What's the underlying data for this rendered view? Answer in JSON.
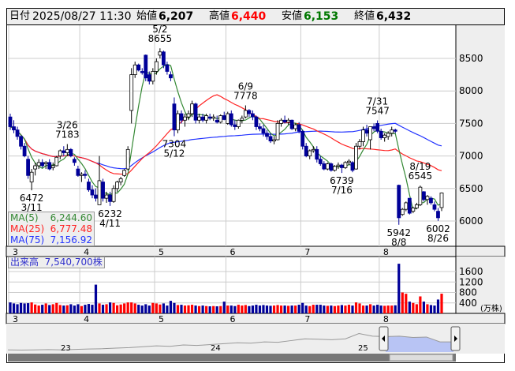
{
  "header": {
    "date_label": "日付",
    "datetime": "2025/08/27 11:30",
    "open_label": "始値",
    "open": "6,207",
    "high_label": "高値",
    "high": "6,440",
    "low_label": "安値",
    "low": "6,153",
    "close_label": "終値",
    "close": "6,432"
  },
  "colors": {
    "up_volume": "#ff0000",
    "down_volume": "#000099",
    "down_candle": "#000099",
    "up_candle": "#ffffff",
    "ma5": "#338833",
    "ma25": "#ff2222",
    "ma75": "#2233ff",
    "high_text": "#ff0000",
    "low_text": "#007700",
    "navigator_fill": "#b8c4f4"
  },
  "ma_legend": [
    {
      "name": "MA(5)",
      "value": "6,244.60"
    },
    {
      "name": "MA(25)",
      "value": "6,777.48"
    },
    {
      "name": "MA(75)",
      "value": "7,156.92"
    }
  ],
  "volume_legend": {
    "label": "出来高",
    "value": "7,540,700株"
  },
  "navigator": {
    "year_labels": [
      "23",
      "24",
      "25"
    ],
    "values": [
      4500,
      4450,
      4500,
      4550,
      4500,
      4600,
      4700,
      4750,
      4900,
      5000,
      5200,
      5400,
      5300,
      5600,
      5500,
      5700,
      5900,
      6100,
      6000,
      6300,
      6200,
      6600,
      7000,
      6900,
      6800,
      7000,
      8200,
      7600,
      7500,
      7600,
      7300,
      7400,
      6300,
      6300
    ]
  },
  "chart_data": {
    "type": "candlestick",
    "price_axis": {
      "ticks": [
        6000,
        6500,
        7000,
        7500,
        8000,
        8500
      ]
    },
    "volume_axis": {
      "ticks": [
        400,
        800,
        1200,
        1600
      ],
      "unit": "(万株)"
    },
    "month_labels": [
      "3",
      "4",
      "5",
      "6",
      "7",
      "8"
    ],
    "annotations": [
      {
        "date": "3/11",
        "value": "6472",
        "pos": "below"
      },
      {
        "date": "3/26",
        "value": "7183",
        "pos": "above"
      },
      {
        "date": "4/11",
        "value": "6232",
        "pos": "below"
      },
      {
        "date": "5/2",
        "value": "8655",
        "pos": "above"
      },
      {
        "date": "5/12",
        "value": "7304",
        "pos": "below"
      },
      {
        "date": "6/9",
        "value": "7778",
        "pos": "above"
      },
      {
        "date": "7/16",
        "value": "6739",
        "pos": "below"
      },
      {
        "date": "7/31",
        "value": "7547",
        "pos": "above"
      },
      {
        "date": "8/8",
        "value": "5942",
        "pos": "below"
      },
      {
        "date": "8/19",
        "value": "6545",
        "pos": "above"
      },
      {
        "date": "8/26",
        "value": "6002",
        "pos": "below"
      }
    ],
    "candles_columns": [
      "date",
      "open",
      "high",
      "low",
      "close",
      "volume_10k_shares"
    ],
    "candles": [
      [
        "3/3",
        7600,
        7650,
        7400,
        7450,
        420
      ],
      [
        "3/4",
        7450,
        7550,
        7350,
        7400,
        380
      ],
      [
        "3/5",
        7400,
        7450,
        7250,
        7300,
        350
      ],
      [
        "3/6",
        7300,
        7320,
        7100,
        7150,
        400
      ],
      [
        "3/7",
        7150,
        7200,
        6980,
        7000,
        380
      ],
      [
        "3/10",
        6950,
        7000,
        6650,
        6700,
        390
      ],
      [
        "3/11",
        6600,
        6800,
        6472,
        6750,
        420
      ],
      [
        "3/12",
        6800,
        6900,
        6700,
        6850,
        340
      ],
      [
        "3/13",
        6850,
        6950,
        6800,
        6900,
        300
      ],
      [
        "3/14",
        6900,
        6950,
        6820,
        6850,
        330
      ],
      [
        "3/17",
        6880,
        6920,
        6800,
        6900,
        380
      ],
      [
        "3/18",
        6900,
        6950,
        6780,
        6800,
        320
      ],
      [
        "3/19",
        6820,
        6900,
        6780,
        6850,
        350
      ],
      [
        "3/21",
        6850,
        7000,
        6840,
        6980,
        400
      ],
      [
        "3/24",
        7000,
        7100,
        6950,
        7080,
        320
      ],
      [
        "3/25",
        7080,
        7150,
        7000,
        7050,
        300
      ],
      [
        "3/26",
        7050,
        7183,
        7000,
        7100,
        310
      ],
      [
        "3/27",
        7100,
        7120,
        6980,
        7000,
        350
      ],
      [
        "3/28",
        6950,
        6980,
        6850,
        6900,
        300
      ],
      [
        "3/31",
        6800,
        6850,
        6680,
        6700,
        350
      ],
      [
        "4/1",
        6700,
        6750,
        6600,
        6720,
        280
      ],
      [
        "4/2",
        6720,
        6780,
        6650,
        6700,
        330
      ],
      [
        "4/3",
        6600,
        6650,
        6450,
        6480,
        360
      ],
      [
        "4/4",
        6480,
        6550,
        6350,
        6400,
        330
      ],
      [
        "4/7",
        6400,
        6500,
        6300,
        6350,
        1100
      ],
      [
        "4/8",
        6250,
        7000,
        6250,
        6620,
        380
      ],
      [
        "4/9",
        6600,
        6650,
        6300,
        6350,
        330
      ],
      [
        "4/10",
        6350,
        6450,
        6280,
        6400,
        350
      ],
      [
        "4/11",
        6400,
        6450,
        6232,
        6300,
        420
      ],
      [
        "4/14",
        6300,
        6550,
        6280,
        6500,
        400
      ],
      [
        "4/15",
        6500,
        6620,
        6450,
        6600,
        310
      ],
      [
        "4/16",
        6600,
        6680,
        6550,
        6650,
        340
      ],
      [
        "4/17",
        6700,
        6800,
        6680,
        6780,
        380
      ],
      [
        "4/18",
        6800,
        7150,
        6780,
        7100,
        420
      ],
      [
        "4/21",
        7700,
        8350,
        7500,
        8250,
        420
      ],
      [
        "4/22",
        8250,
        8450,
        8200,
        8400,
        380
      ],
      [
        "4/23",
        8400,
        8420,
        8300,
        8320,
        330
      ],
      [
        "4/24",
        8300,
        8350,
        8250,
        8280,
        300
      ],
      [
        "4/25",
        8550,
        8560,
        8150,
        8200,
        350
      ],
      [
        "4/28",
        8250,
        8300,
        8100,
        8150,
        300
      ],
      [
        "4/30",
        8150,
        8350,
        8100,
        8300,
        400
      ],
      [
        "5/1",
        8300,
        8500,
        8250,
        8450,
        380
      ],
      [
        "5/2",
        8550,
        8655,
        8500,
        8600,
        340
      ],
      [
        "5/7",
        8600,
        8620,
        8350,
        8400,
        380
      ],
      [
        "5/8",
        8400,
        8450,
        8250,
        8300,
        300
      ],
      [
        "5/9",
        8250,
        8300,
        8150,
        8200,
        480
      ],
      [
        "5/12",
        7800,
        7900,
        7304,
        7400,
        400
      ],
      [
        "5/13",
        7400,
        7700,
        7350,
        7650,
        320
      ],
      [
        "5/14",
        7650,
        7700,
        7500,
        7550,
        330
      ],
      [
        "5/15",
        7550,
        7650,
        7450,
        7600,
        300
      ],
      [
        "5/16",
        7600,
        7700,
        7550,
        7650,
        310
      ],
      [
        "5/19",
        7650,
        7850,
        7600,
        7800,
        330
      ],
      [
        "5/20",
        7800,
        7820,
        7500,
        7550,
        300
      ],
      [
        "5/21",
        7550,
        7650,
        7500,
        7600,
        280
      ],
      [
        "5/22",
        7600,
        7650,
        7520,
        7550,
        300
      ],
      [
        "5/23",
        7550,
        7650,
        7500,
        7620,
        280
      ],
      [
        "5/26",
        7600,
        7650,
        7550,
        7580,
        270
      ],
      [
        "5/27",
        7580,
        7640,
        7540,
        7600,
        280
      ],
      [
        "5/28",
        7550,
        7620,
        7500,
        7520,
        270
      ],
      [
        "5/29",
        7520,
        7640,
        7500,
        7620,
        280
      ],
      [
        "5/30",
        7620,
        7680,
        7550,
        7560,
        450
      ],
      [
        "6/2",
        7500,
        7680,
        7480,
        7650,
        300
      ],
      [
        "6/3",
        7650,
        7700,
        7450,
        7480,
        300
      ],
      [
        "6/4",
        7480,
        7550,
        7400,
        7450,
        280
      ],
      [
        "6/5",
        7450,
        7560,
        7420,
        7550,
        330
      ],
      [
        "6/6",
        7550,
        7620,
        7500,
        7580,
        300
      ],
      [
        "6/9",
        7600,
        7778,
        7580,
        7700,
        320
      ],
      [
        "6/10",
        7700,
        7720,
        7600,
        7650,
        280
      ],
      [
        "6/11",
        7650,
        7700,
        7550,
        7600,
        300
      ],
      [
        "6/12",
        7600,
        7620,
        7400,
        7450,
        330
      ],
      [
        "6/13",
        7450,
        7500,
        7380,
        7420,
        300
      ],
      [
        "6/16",
        7420,
        7480,
        7300,
        7350,
        320
      ],
      [
        "6/17",
        7350,
        7400,
        7250,
        7300,
        300
      ],
      [
        "6/18",
        7300,
        7350,
        7200,
        7230,
        290
      ],
      [
        "6/19",
        7230,
        7300,
        7180,
        7250,
        300
      ],
      [
        "6/20",
        7250,
        7550,
        7240,
        7500,
        320
      ],
      [
        "6/23",
        7500,
        7580,
        7450,
        7550,
        300
      ],
      [
        "6/24",
        7550,
        7620,
        7500,
        7520,
        300
      ],
      [
        "6/25",
        7520,
        7580,
        7480,
        7550,
        290
      ],
      [
        "6/26",
        7550,
        7560,
        7400,
        7420,
        300
      ],
      [
        "6/27",
        7420,
        7500,
        7380,
        7480,
        300
      ],
      [
        "6/30",
        7480,
        7520,
        7350,
        7380,
        330
      ],
      [
        "7/1",
        7380,
        7400,
        7100,
        7150,
        400
      ],
      [
        "7/2",
        7150,
        7200,
        6980,
        7000,
        300
      ],
      [
        "7/3",
        7000,
        7100,
        6950,
        7080,
        280
      ],
      [
        "7/4",
        7080,
        7150,
        7050,
        7100,
        330
      ],
      [
        "7/7",
        7100,
        7150,
        6900,
        6950,
        330
      ],
      [
        "7/8",
        6950,
        7000,
        6850,
        6880,
        330
      ],
      [
        "7/9",
        6880,
        6920,
        6780,
        6800,
        300
      ],
      [
        "7/10",
        6800,
        6900,
        6780,
        6880,
        290
      ],
      [
        "7/11",
        6880,
        6900,
        6760,
        6780,
        300
      ],
      [
        "7/14",
        6780,
        6860,
        6760,
        6840,
        280
      ],
      [
        "7/15",
        6840,
        6900,
        6800,
        6860,
        300
      ],
      [
        "7/16",
        6860,
        6880,
        6739,
        6820,
        320
      ],
      [
        "7/17",
        6820,
        6920,
        6800,
        6900,
        300
      ],
      [
        "7/18",
        6900,
        6950,
        6860,
        6920,
        330
      ],
      [
        "7/22",
        6900,
        6920,
        6750,
        6780,
        300
      ],
      [
        "7/23",
        6800,
        7200,
        6790,
        7150,
        420
      ],
      [
        "7/24",
        7150,
        7260,
        7100,
        7220,
        380
      ],
      [
        "7/25",
        7220,
        7450,
        7150,
        7400,
        300
      ],
      [
        "7/28",
        7400,
        7480,
        7300,
        7350,
        300
      ],
      [
        "7/29",
        7250,
        7450,
        7100,
        7450,
        350
      ],
      [
        "7/30",
        7450,
        7500,
        7380,
        7420,
        300
      ],
      [
        "7/31",
        7500,
        7547,
        7350,
        7380,
        330
      ],
      [
        "8/1",
        7380,
        7420,
        7250,
        7280,
        300
      ],
      [
        "8/4",
        7280,
        7350,
        7220,
        7320,
        290
      ],
      [
        "8/5",
        7300,
        7380,
        7250,
        7350,
        300
      ],
      [
        "8/6",
        7350,
        7450,
        7300,
        7400,
        300
      ],
      [
        "8/7",
        7400,
        7420,
        7350,
        7380,
        310
      ],
      [
        "8/8",
        6550,
        6560,
        5942,
        6050,
        1900
      ],
      [
        "8/12",
        6100,
        6200,
        6080,
        6180,
        800
      ],
      [
        "8/13",
        6180,
        6300,
        6150,
        6280,
        750
      ],
      [
        "8/14",
        6350,
        6350,
        6100,
        6120,
        450
      ],
      [
        "8/15",
        6150,
        6220,
        6120,
        6200,
        400
      ],
      [
        "8/18",
        6200,
        6280,
        6180,
        6250,
        350
      ],
      [
        "8/19",
        6250,
        6545,
        6230,
        6520,
        650
      ],
      [
        "8/20",
        6450,
        6460,
        6300,
        6330,
        450
      ],
      [
        "8/21",
        6330,
        6400,
        6250,
        6380,
        350
      ],
      [
        "8/22",
        6350,
        6380,
        6250,
        6280,
        320
      ],
      [
        "8/25",
        6250,
        6300,
        6150,
        6180,
        300
      ],
      [
        "8/26",
        6150,
        6200,
        6002,
        6050,
        530
      ],
      [
        "8/27",
        6207,
        6440,
        6153,
        6432,
        754
      ]
    ]
  }
}
